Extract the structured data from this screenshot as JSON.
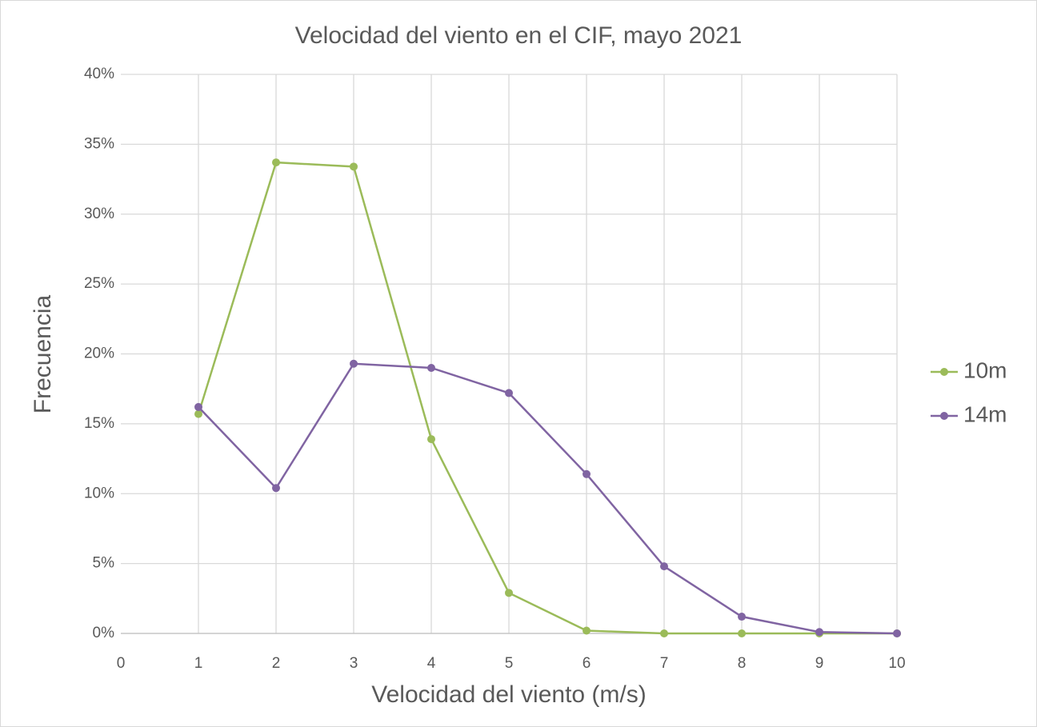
{
  "chart_data": {
    "type": "line",
    "title": "Velocidad del viento en el CIF, mayo 2021",
    "x_label": "Velocidad del viento (m/s)",
    "y_label": "Frecuencia",
    "x": [
      1,
      2,
      3,
      4,
      5,
      6,
      7,
      8,
      9,
      10
    ],
    "series": [
      {
        "name": "10m",
        "color": "#9bbb59",
        "values": [
          15.7,
          33.7,
          33.4,
          13.9,
          2.9,
          0.2,
          0,
          0,
          0,
          0
        ]
      },
      {
        "name": "14m",
        "color": "#8064a2",
        "values": [
          16.2,
          10.4,
          19.3,
          19.0,
          17.2,
          11.4,
          4.8,
          1.2,
          0.1,
          0
        ]
      }
    ],
    "xlim": [
      0,
      10
    ],
    "xticks": [
      0,
      1,
      2,
      3,
      4,
      5,
      6,
      7,
      8,
      9,
      10
    ],
    "ylim": [
      0,
      40
    ],
    "yticks": [
      {
        "value": 0,
        "label": "0%"
      },
      {
        "value": 5,
        "label": "5%"
      },
      {
        "value": 10,
        "label": "10%"
      },
      {
        "value": 15,
        "label": "15%"
      },
      {
        "value": 20,
        "label": "20%"
      },
      {
        "value": 25,
        "label": "25%"
      },
      {
        "value": 30,
        "label": "30%"
      },
      {
        "value": 35,
        "label": "35%"
      },
      {
        "value": 40,
        "label": "40%"
      }
    ],
    "grid": true,
    "legend": "right"
  }
}
